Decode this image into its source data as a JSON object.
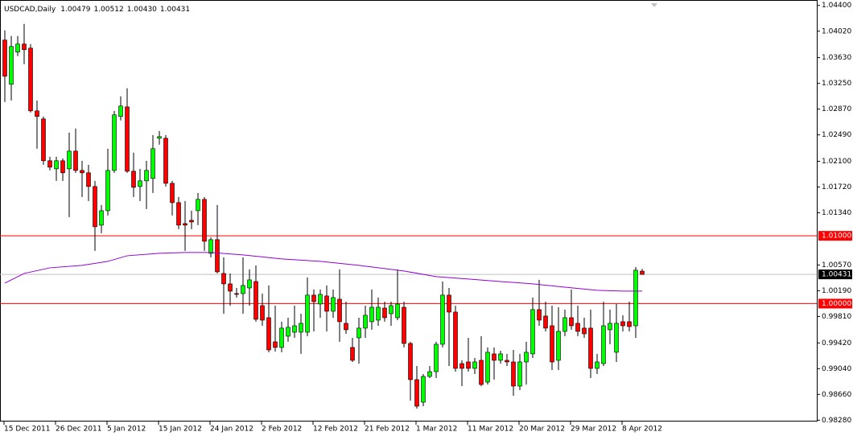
{
  "chart_data": {
    "type": "candlestick",
    "title": "USDCAD,Daily",
    "header_ohlc": [
      "1.00479",
      "1.00512",
      "1.00430",
      "1.00431"
    ],
    "categories": [
      "15 Dec 2011",
      null,
      null,
      null,
      null,
      null,
      null,
      null,
      "26 Dec 2011",
      null,
      null,
      null,
      null,
      null,
      null,
      null,
      "5 Jan 2012",
      null,
      null,
      null,
      null,
      null,
      null,
      null,
      "15 Jan 2012",
      null,
      null,
      null,
      null,
      null,
      null,
      null,
      "24 Jan 2012",
      null,
      null,
      null,
      null,
      null,
      null,
      null,
      "2 Feb 2012",
      null,
      null,
      null,
      null,
      null,
      null,
      null,
      "12 Feb 2012",
      null,
      null,
      null,
      null,
      null,
      null,
      null,
      "21 Feb 2012",
      null,
      null,
      null,
      null,
      null,
      null,
      null,
      "1 Mar 2012",
      null,
      null,
      null,
      null,
      null,
      null,
      null,
      "11 Mar 2012",
      null,
      null,
      null,
      null,
      null,
      null,
      null,
      "20 Mar 2012",
      null,
      null,
      null,
      null,
      null,
      null,
      null,
      "29 Mar 2012",
      null,
      null,
      null,
      null,
      null,
      null,
      null,
      "8 Apr 2012",
      null,
      null,
      null
    ],
    "ohlc": [
      [
        1.03889,
        1.04032,
        1.02975,
        1.03355
      ],
      [
        1.03236,
        1.03949,
        1.02998,
        1.03794
      ],
      [
        1.03711,
        1.03949,
        1.03652,
        1.0383
      ],
      [
        1.0383,
        1.04127,
        1.03533,
        1.03747
      ],
      [
        1.0377,
        1.0383,
        1.0282,
        1.02844
      ],
      [
        1.02844,
        1.02998,
        1.02286,
        1.02761
      ],
      [
        1.02725,
        1.02761,
        1.02048,
        1.02108
      ],
      [
        1.02108,
        1.02167,
        1.01965,
        1.02013
      ],
      [
        1.01989,
        1.02167,
        1.01811,
        1.02108
      ],
      [
        1.02108,
        1.02143,
        1.01811,
        1.0193
      ],
      [
        1.01989,
        1.02523,
        1.01276,
        1.0225
      ],
      [
        1.0225,
        1.02583,
        1.0193,
        1.01965
      ],
      [
        1.01965,
        1.02108,
        1.01573,
        1.0193
      ],
      [
        1.0193,
        1.02048,
        1.01514,
        1.01728
      ],
      [
        1.01728,
        1.01811,
        1.00778,
        1.01134
      ],
      [
        1.01158,
        1.01455,
        1.01039,
        1.01371
      ],
      [
        1.01371,
        1.02286,
        1.013,
        1.01965
      ],
      [
        1.01965,
        1.02844,
        1.0193,
        1.02785
      ],
      [
        1.02761,
        1.03058,
        1.02702,
        1.02915
      ],
      [
        1.02903,
        1.03177,
        1.0193,
        1.01953
      ],
      [
        1.01953,
        1.02227,
        1.01573,
        1.01716
      ],
      [
        1.01728,
        1.01989,
        1.01514,
        1.01811
      ],
      [
        1.01811,
        1.02108,
        1.01395,
        1.01965
      ],
      [
        1.01847,
        1.02488,
        1.01633,
        1.02286
      ],
      [
        1.0244,
        1.02547,
        1.02345,
        1.02464
      ],
      [
        1.0244,
        1.02488,
        1.01728,
        1.01775
      ],
      [
        1.01775,
        1.01811,
        1.013,
        1.0149
      ],
      [
        1.0149,
        1.01573,
        1.01098,
        1.01158
      ],
      [
        1.01181,
        1.01514,
        1.00778,
        1.01158
      ],
      [
        1.01229,
        1.01371,
        1.01098,
        1.01205
      ],
      [
        1.01371,
        1.01633,
        1.01158,
        1.01538
      ],
      [
        1.01538,
        1.01573,
        1.00778,
        1.0092
      ],
      [
        1.00742,
        1.0098,
        1.00683,
        1.00944
      ],
      [
        1.00944,
        1.01455,
        1.00445,
        1.00469
      ],
      [
        1.00445,
        1.00683,
        0.99851,
        1.00291
      ],
      [
        1.00291,
        1.00445,
        0.9997,
        1.00184
      ],
      [
        1.00148,
        1.00231,
        1.00089,
        1.00136
      ],
      [
        1.00148,
        1.00683,
        0.99851,
        1.00267
      ],
      [
        1.00231,
        1.00505,
        0.9997,
        1.0035
      ],
      [
        1.00326,
        1.00564,
        0.99733,
        0.99768
      ],
      [
        0.9997,
        1.00148,
        0.99673,
        0.99756
      ],
      [
        0.99792,
        1.00267,
        0.99282,
        0.99317
      ],
      [
        0.99436,
        0.9997,
        0.99293,
        0.99353
      ],
      [
        0.99353,
        0.99733,
        0.99282,
        0.99638
      ],
      [
        0.99519,
        0.99792,
        0.99436,
        0.9965
      ],
      [
        0.99578,
        0.9997,
        0.99495,
        0.99673
      ],
      [
        0.99578,
        0.99851,
        0.99258,
        0.99709
      ],
      [
        0.99578,
        1.00386,
        0.99519,
        1.00125
      ],
      [
        1.00125,
        1.00208,
        0.9959,
        1.00029
      ],
      [
        0.99994,
        1.00208,
        0.99792,
        1.00136
      ],
      [
        1.00113,
        1.00267,
        0.9959,
        0.99887
      ],
      [
        0.99887,
        1.00208,
        0.99792,
        1.00089
      ],
      [
        1.00065,
        1.00505,
        0.99436,
        0.99733
      ],
      [
        0.99709,
        1.00029,
        0.99554,
        0.99614
      ],
      [
        0.99353,
        0.99495,
        0.99139,
        0.99163
      ],
      [
        0.99495,
        0.99792,
        0.99115,
        0.99638
      ],
      [
        0.99638,
        0.9997,
        0.99495,
        0.99828
      ],
      [
        0.99733,
        1.00208,
        0.99614,
        0.99946
      ],
      [
        0.99756,
        1.00089,
        0.99673,
        0.99946
      ],
      [
        0.99934,
        1.00029,
        0.99733,
        0.99792
      ],
      [
        0.99851,
        1.00029,
        0.99673,
        0.9997
      ],
      [
        0.99792,
        1.00505,
        0.99756,
        0.99994
      ],
      [
        0.99946,
        1.00029,
        0.99353,
        0.99412
      ],
      [
        0.99412,
        0.99436,
        0.98569,
        0.98878
      ],
      [
        0.98878,
        0.99079,
        0.9845,
        0.98486
      ],
      [
        0.98545,
        0.98961,
        0.98486,
        0.98925
      ],
      [
        0.98925,
        0.99079,
        0.98901,
        0.98996
      ],
      [
        0.98996,
        0.99436,
        0.98901,
        0.994
      ],
      [
        0.994,
        1.00326,
        0.99353,
        1.00125
      ],
      [
        1.00125,
        1.00231,
        0.99079,
        0.99875
      ],
      [
        0.99875,
        0.9997,
        0.98996,
        0.99044
      ],
      [
        0.99115,
        0.99163,
        0.98783,
        0.99044
      ],
      [
        0.99139,
        0.99495,
        0.98996,
        0.99044
      ],
      [
        0.99044,
        0.99198,
        0.98961,
        0.99139
      ],
      [
        0.99163,
        0.99519,
        0.98783,
        0.98806
      ],
      [
        0.98842,
        0.99353,
        0.98806,
        0.99282
      ],
      [
        0.99258,
        0.99353,
        0.98878,
        0.99163
      ],
      [
        0.99163,
        0.99305,
        0.99115,
        0.99258
      ],
      [
        0.99163,
        0.99258,
        0.99079,
        0.99139
      ],
      [
        0.99139,
        0.99317,
        0.9864,
        0.98783
      ],
      [
        0.98783,
        0.99258,
        0.98723,
        0.99139
      ],
      [
        0.99139,
        0.99436,
        0.98806,
        0.99282
      ],
      [
        0.99258,
        1.00089,
        0.99198,
        0.99911
      ],
      [
        0.99911,
        1.0035,
        0.99673,
        0.99756
      ],
      [
        0.99816,
        1.00029,
        0.9959,
        0.99638
      ],
      [
        0.99673,
        0.9997,
        0.9902,
        0.99139
      ],
      [
        0.99163,
        0.99946,
        0.9902,
        0.9959
      ],
      [
        0.9959,
        0.99911,
        0.99519,
        0.99792
      ],
      [
        0.99792,
        1.00208,
        0.99614,
        0.99673
      ],
      [
        0.99709,
        0.9997,
        0.99519,
        0.9959
      ],
      [
        0.99638,
        0.99792,
        0.99495,
        0.99554
      ],
      [
        0.99638,
        0.99911,
        0.98901,
        0.99044
      ],
      [
        0.99044,
        0.99258,
        0.98961,
        0.99139
      ],
      [
        0.99115,
        1.00029,
        0.99079,
        0.99673
      ],
      [
        0.99614,
        0.99911,
        0.994,
        0.99709
      ],
      [
        0.99282,
        0.99994,
        0.99139,
        0.99709
      ],
      [
        0.99733,
        0.99828,
        0.9959,
        0.99673
      ],
      [
        0.99733,
        1.00029,
        0.9959,
        0.99661
      ],
      [
        0.99673,
        1.0054,
        0.99495,
        1.00493
      ],
      [
        1.00479,
        1.00512,
        1.0043,
        1.00431
      ]
    ],
    "bull_color": "#00ff00",
    "bear_color": "#ff0000",
    "ma": {
      "color": "#9400d3",
      "x": [
        0,
        3,
        7,
        12,
        16,
        19,
        24,
        28,
        32,
        37,
        43,
        49,
        55,
        62,
        67,
        72,
        77,
        82,
        87,
        92,
        96,
        99
      ],
      "values": [
        1.00303,
        1.00445,
        1.00528,
        1.00564,
        1.00623,
        1.00706,
        1.00742,
        1.00754,
        1.00754,
        1.00718,
        1.00659,
        1.00623,
        1.00564,
        1.00481,
        1.00398,
        1.00362,
        1.00326,
        1.00291,
        1.00243,
        1.00196,
        1.00184,
        1.00184
      ]
    },
    "hlines": [
      {
        "value": 1.01,
        "label": "1.01000",
        "color": "#ff0000"
      },
      {
        "value": 1.0,
        "label": "1.00000",
        "color": "#ff0000"
      }
    ],
    "last_price": {
      "value": 1.00431,
      "label": "1.00431",
      "color": "#c0c0c0"
    },
    "ylim": [
      0.9826,
      1.0448
    ],
    "yticks": [
      {
        "value": 1.044,
        "label": "1.04400"
      },
      {
        "value": 1.0402,
        "label": "1.04020"
      },
      {
        "value": 1.0363,
        "label": "1.03630"
      },
      {
        "value": 1.0325,
        "label": "1.03250"
      },
      {
        "value": 1.0287,
        "label": "1.02870"
      },
      {
        "value": 1.0249,
        "label": "1.02490"
      },
      {
        "value": 1.021,
        "label": "1.02100"
      },
      {
        "value": 1.0172,
        "label": "1.01720"
      },
      {
        "value": 1.0134,
        "label": "1.01340"
      },
      {
        "value": 1.0057,
        "label": "1.00570"
      },
      {
        "value": 1.0019,
        "label": "1.00190"
      },
      {
        "value": 0.9981,
        "label": "0.99810"
      },
      {
        "value": 0.9942,
        "label": "0.99420"
      },
      {
        "value": 0.9904,
        "label": "0.99040"
      },
      {
        "value": 0.9866,
        "label": "0.98660"
      },
      {
        "value": 0.9828,
        "label": "0.98280"
      }
    ],
    "grid": false
  }
}
